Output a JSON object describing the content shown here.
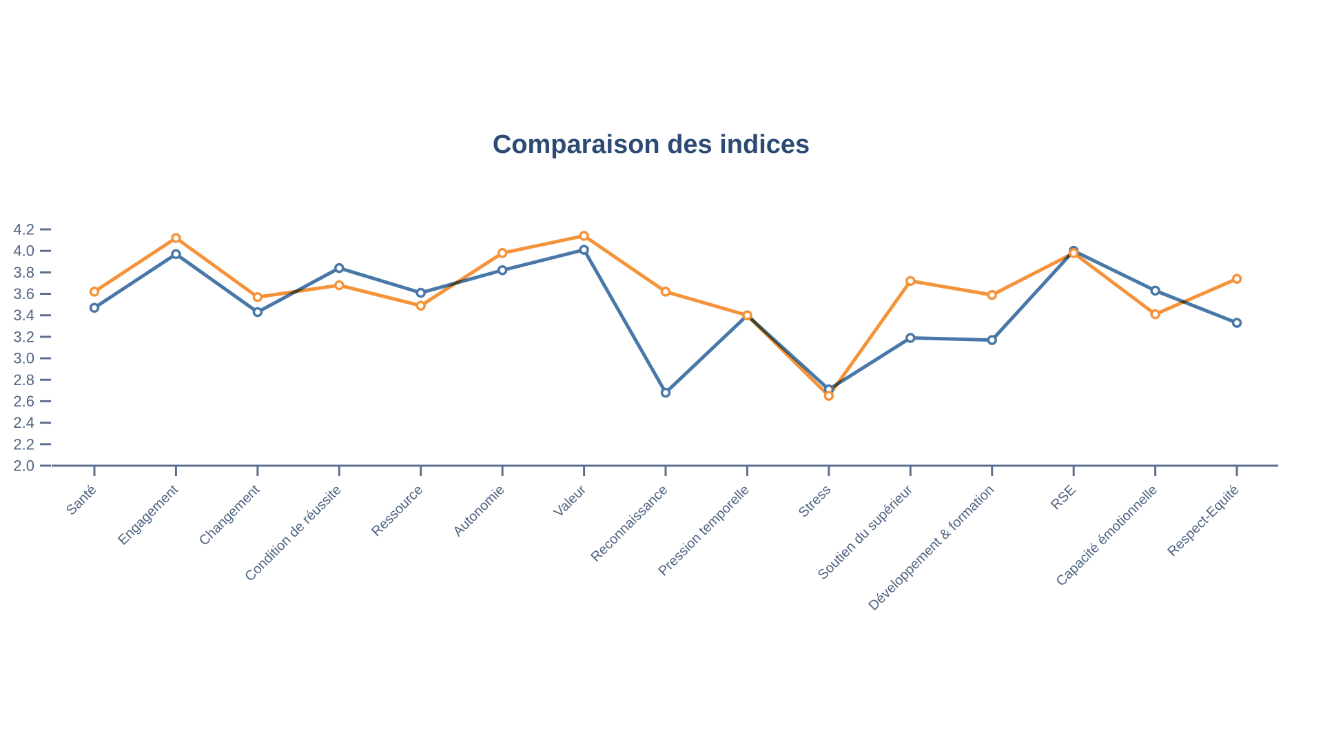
{
  "page": {
    "background": "#ffffff"
  },
  "chart_data": {
    "type": "line",
    "title": "Comparaison des indices",
    "title_color": "#2d4a73",
    "axis_color": "#5d6f8e",
    "label_color": "#4e6382",
    "legend": "none",
    "grid": false,
    "ylim": [
      2.0,
      4.2
    ],
    "yticks": [
      "2.0",
      "2.2",
      "2.4",
      "2.6",
      "2.8",
      "3.0",
      "3.2",
      "3.4",
      "3.6",
      "3.8",
      "4.0",
      "4.2"
    ],
    "categories": [
      "Santé",
      "Engagement",
      "Changement",
      "Condition de réussite",
      "Ressource",
      "Autonomie",
      "Valeur",
      "Reconnaissance",
      "Pression temporelle",
      "Stress",
      "Soutien du supérieur",
      "Développement & formation",
      "RSE",
      "Capacité émotionnelle",
      "Respect-Equité"
    ],
    "series": [
      {
        "id": "blue",
        "color": "#4877a8",
        "values": [
          3.47,
          3.97,
          3.43,
          3.84,
          3.61,
          3.82,
          4.01,
          2.68,
          3.4,
          2.71,
          3.19,
          3.17,
          4.0,
          3.63,
          3.33
        ]
      },
      {
        "id": "orange",
        "color": "#f5933a",
        "values": [
          3.62,
          4.12,
          3.57,
          3.68,
          3.49,
          3.98,
          4.14,
          3.62,
          3.4,
          2.65,
          3.72,
          3.59,
          3.98,
          3.41,
          3.74
        ]
      }
    ]
  }
}
